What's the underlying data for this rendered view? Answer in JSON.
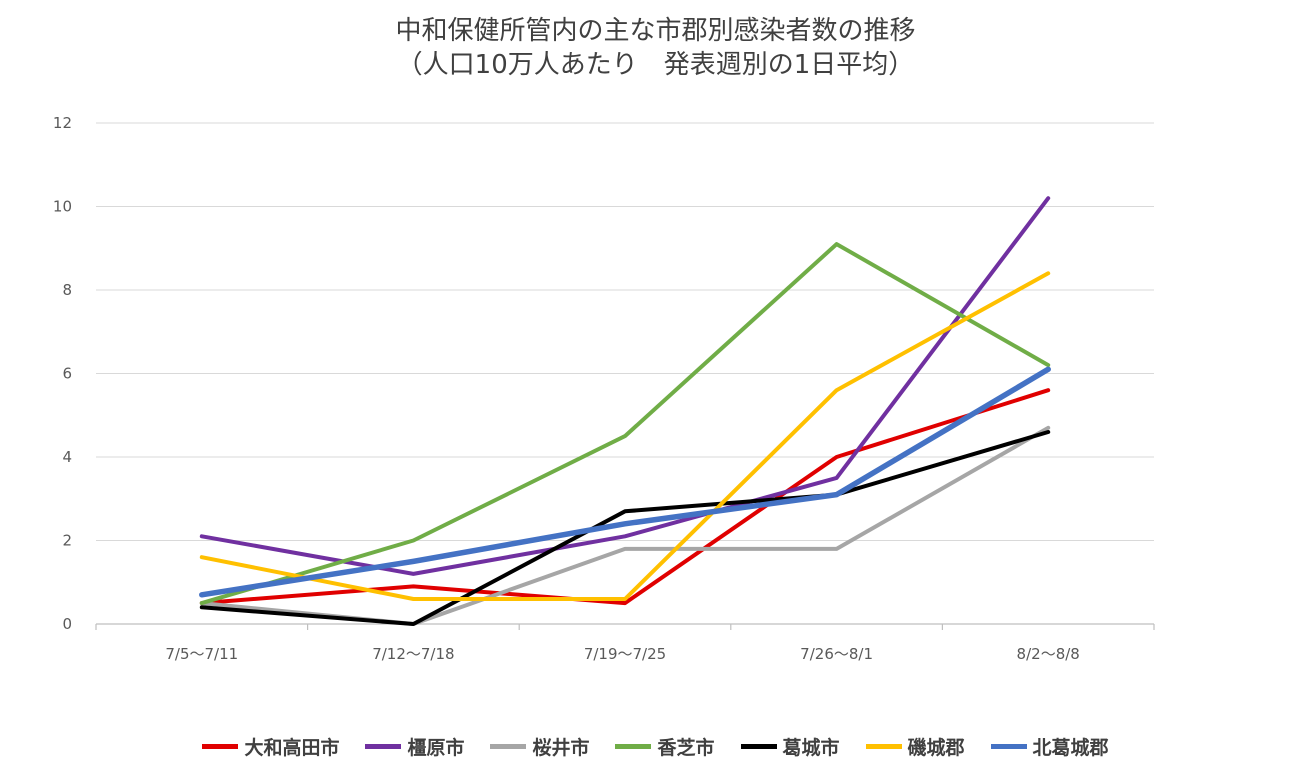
{
  "chart_data": {
    "type": "line",
    "title": "中和保健所管内の主な市郡別感染者数の推移",
    "subtitle": "（人口10万人あたり　発表週別の1日平均）",
    "xlabel": "",
    "ylabel": "",
    "categories": [
      "7/5〜7/11",
      "7/12〜7/18",
      "7/19〜7/25",
      "7/26〜8/1",
      "8/2〜8/8"
    ],
    "ylim": [
      0,
      12
    ],
    "yticks": [
      0,
      2,
      4,
      6,
      8,
      10,
      12
    ],
    "grid": "horizontal",
    "legend_position": "bottom",
    "series": [
      {
        "name": "大和高田市",
        "color": "#e00000",
        "values": [
          0.5,
          0.9,
          0.5,
          4.0,
          5.6
        ]
      },
      {
        "name": "橿原市",
        "color": "#7030a0",
        "values": [
          2.1,
          1.2,
          2.1,
          3.5,
          10.2
        ]
      },
      {
        "name": "桜井市",
        "color": "#a6a6a6",
        "values": [
          0.5,
          0.0,
          1.8,
          1.8,
          4.7
        ]
      },
      {
        "name": "香芝市",
        "color": "#70ad47",
        "values": [
          0.5,
          2.0,
          4.5,
          9.1,
          6.2
        ]
      },
      {
        "name": "葛城市",
        "color": "#000000",
        "values": [
          0.4,
          0.0,
          2.7,
          3.1,
          4.6
        ]
      },
      {
        "name": "磯城郡",
        "color": "#ffc000",
        "values": [
          1.6,
          0.6,
          0.6,
          5.6,
          8.4
        ]
      },
      {
        "name": "北葛城郡",
        "color": "#4472c4",
        "values": [
          0.7,
          1.5,
          2.4,
          3.1,
          6.1
        ]
      }
    ]
  }
}
